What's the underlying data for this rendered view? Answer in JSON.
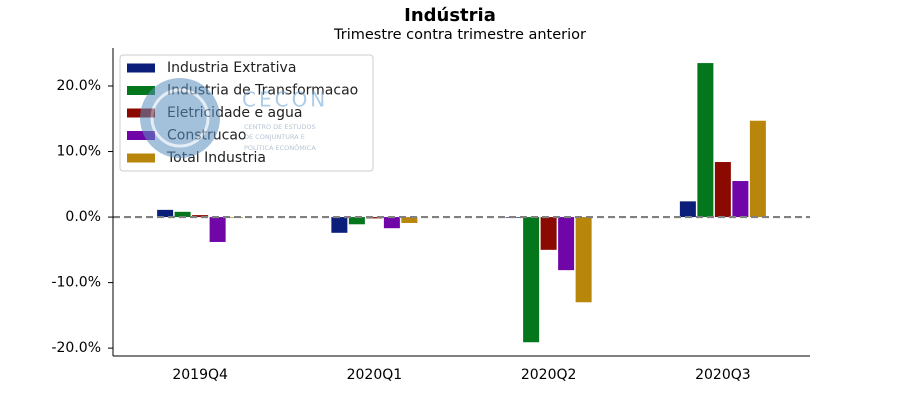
{
  "chart_data": {
    "type": "bar",
    "title": "Indústria",
    "subtitle": "Trimestre contra trimestre anterior",
    "categories": [
      "2019Q4",
      "2020Q1",
      "2020Q2",
      "2020Q3"
    ],
    "series": [
      {
        "name": "Industria Extrativa",
        "color": "#0b1f7a",
        "values": [
          1.1,
          -2.4,
          -0.1,
          2.4
        ]
      },
      {
        "name": "Industria de Transformacao",
        "color": "#04761b",
        "values": [
          0.8,
          -1.1,
          -19.1,
          23.5
        ]
      },
      {
        "name": "Eletricidade e agua",
        "color": "#8b0a00",
        "values": [
          0.3,
          -0.2,
          -5.0,
          8.4
        ]
      },
      {
        "name": "Construcao",
        "color": "#7005a8",
        "values": [
          -3.8,
          -1.7,
          -8.1,
          5.5
        ]
      },
      {
        "name": "Total Industria",
        "color": "#b8860b",
        "values": [
          -0.1,
          -0.9,
          -13.0,
          14.7
        ]
      }
    ],
    "ylim": [
      -21.2,
      25.8
    ],
    "yticks": [
      {
        "value": -20,
        "label": "-20.0%"
      },
      {
        "value": -10,
        "label": "-10.0%"
      },
      {
        "value": 0,
        "label": "0.0%"
      },
      {
        "value": 10,
        "label": "10.0%"
      },
      {
        "value": 20,
        "label": "20.0%"
      }
    ],
    "zero_line": true,
    "legend": "upper left",
    "watermark": {
      "name": "CECON",
      "lines": [
        "CENTRO DE ESTUDOS",
        "DE CONJUNTURA E",
        "POLÍTICA ECONÔMICA"
      ]
    }
  }
}
